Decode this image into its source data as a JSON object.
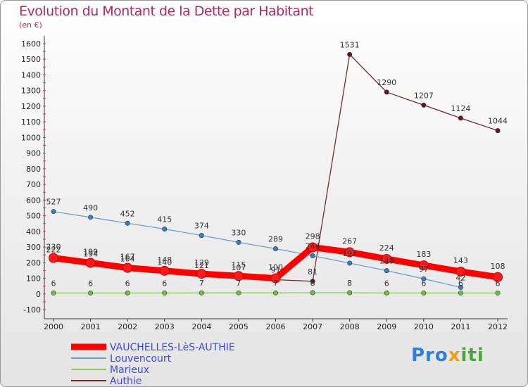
{
  "title": "Evolution du Montant de la Dette par Habitant",
  "unit_note": "(en €)",
  "logo_text": "Proxiti",
  "chart_data": {
    "type": "line",
    "x": [
      "2000",
      "2001",
      "2002",
      "2003",
      "2004",
      "2005",
      "2006",
      "2007",
      "2008",
      "2009",
      "2010",
      "2011",
      "2012"
    ],
    "ylim": [
      -100,
      1600
    ],
    "yticks": [
      -100,
      0,
      100,
      200,
      300,
      400,
      500,
      600,
      700,
      800,
      900,
      1000,
      1100,
      1200,
      1300,
      1400,
      1500,
      1600
    ],
    "grid": false,
    "legend_position": "bottom-left",
    "series": [
      {
        "name": "VAUCHELLES-LèS-AUTHIE",
        "color": "#ff0000",
        "point_color": "#ff1a1a",
        "values": [
          230,
          199,
          167,
          148,
          129,
          115,
          100,
          298,
          267,
          224,
          183,
          143,
          108
        ]
      },
      {
        "name": "Louvencourt",
        "color": "#6b9fd0",
        "point_color": "#3a7dc8",
        "values": [
          527,
          490,
          452,
          415,
          374,
          330,
          289,
          244,
          197,
          149,
          97,
          42,
          null
        ]
      },
      {
        "name": "Marieux",
        "color": "#8ccc5a",
        "point_color": "#6cc23c",
        "values": [
          6,
          6,
          6,
          6,
          7,
          7,
          7,
          8,
          8,
          6,
          6,
          6,
          6
        ]
      },
      {
        "name": "Authie",
        "color": "#7a2a2a",
        "point_color": "#6a1616",
        "values": [
          222,
          194,
          164,
          140,
          121,
          107,
          91,
          81,
          1531,
          1290,
          1207,
          1124,
          1044
        ]
      }
    ]
  }
}
